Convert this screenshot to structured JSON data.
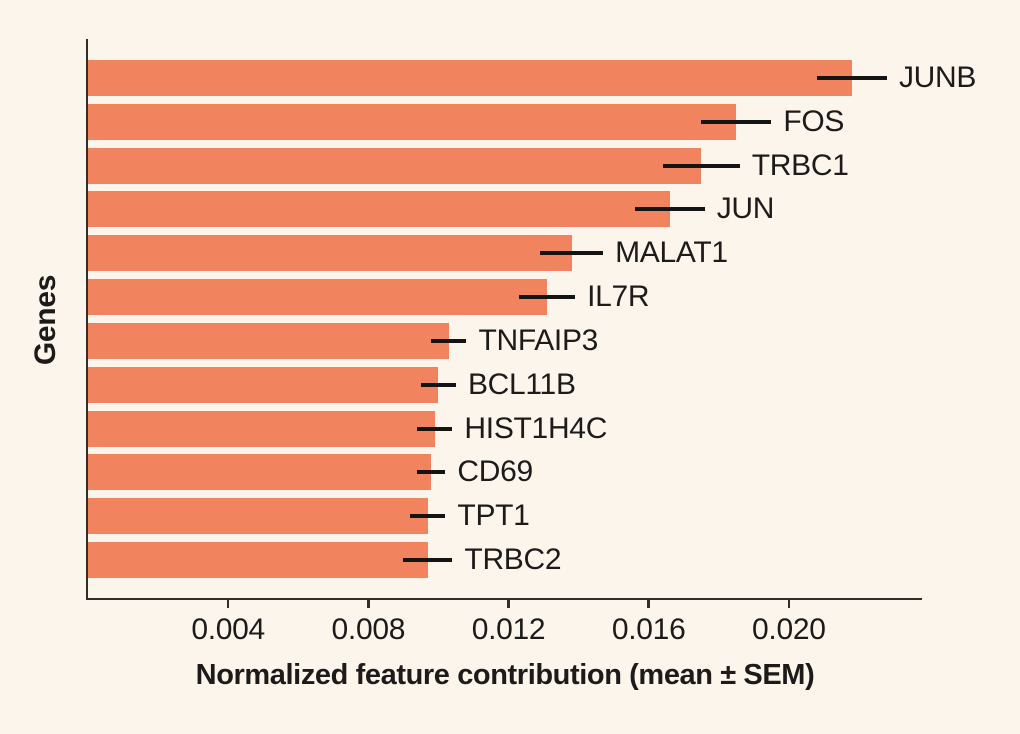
{
  "background": "#FBF5EB",
  "chart_data": {
    "type": "bar",
    "orientation": "horizontal",
    "title": "",
    "xlabel": "Normalized feature contribution (mean ± SEM)",
    "ylabel": "Genes",
    "categories": [
      "JUNB",
      "FOS",
      "TRBC1",
      "JUN",
      "MALAT1",
      "IL7R",
      "TNFAIP3",
      "BCL11B",
      "HIST1H4C",
      "CD69",
      "TPT1",
      "TRBC2"
    ],
    "values": [
      0.0218,
      0.0185,
      0.0175,
      0.0166,
      0.0138,
      0.0131,
      0.0103,
      0.01,
      0.0099,
      0.0098,
      0.0097,
      0.0097
    ],
    "sem": [
      0.001,
      0.001,
      0.0011,
      0.001,
      0.0009,
      0.0008,
      0.0005,
      0.0005,
      0.0005,
      0.0004,
      0.0005,
      0.0007
    ],
    "xlim": [
      0,
      0.0238
    ],
    "xticks": [
      0.004,
      0.008,
      0.012,
      0.016,
      0.02
    ],
    "xtick_labels": [
      "0.004",
      "0.008",
      "0.012",
      "0.016",
      "0.020"
    ],
    "bar_color": "#F1845F",
    "error_bar_color": "#141414",
    "axis_color": "#332e29",
    "text_color": "#1c1b1a",
    "grid": false,
    "legend": "none",
    "error_bar_caps": false,
    "bar_label_position": "right-of-error-bar"
  }
}
